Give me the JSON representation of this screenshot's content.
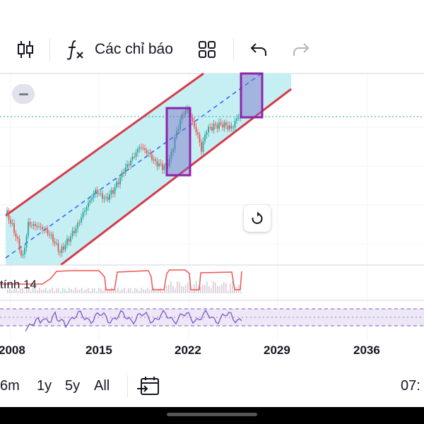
{
  "toolbar": {
    "indicators_label": "Các chỉ báo",
    "icons": [
      "candlestick-icon",
      "function-icon",
      "layout-grid-icon",
      "undo-icon",
      "redo-icon"
    ]
  },
  "indicator": {
    "label": "tính 14"
  },
  "time_axis": {
    "labels": [
      "2008",
      "2015",
      "2022",
      "2029",
      "2036"
    ]
  },
  "ranges": [
    "6m",
    "1y",
    "5y",
    "All"
  ],
  "clock": "07:",
  "colors": {
    "channel_fill": "#c6eff3",
    "channel_border": "#d63b4b",
    "box": "#8e24aa",
    "median": "#2962ff",
    "candle_up": "#26a69a",
    "candle_down": "#ef5350",
    "rsi": "#7e57c2"
  }
}
